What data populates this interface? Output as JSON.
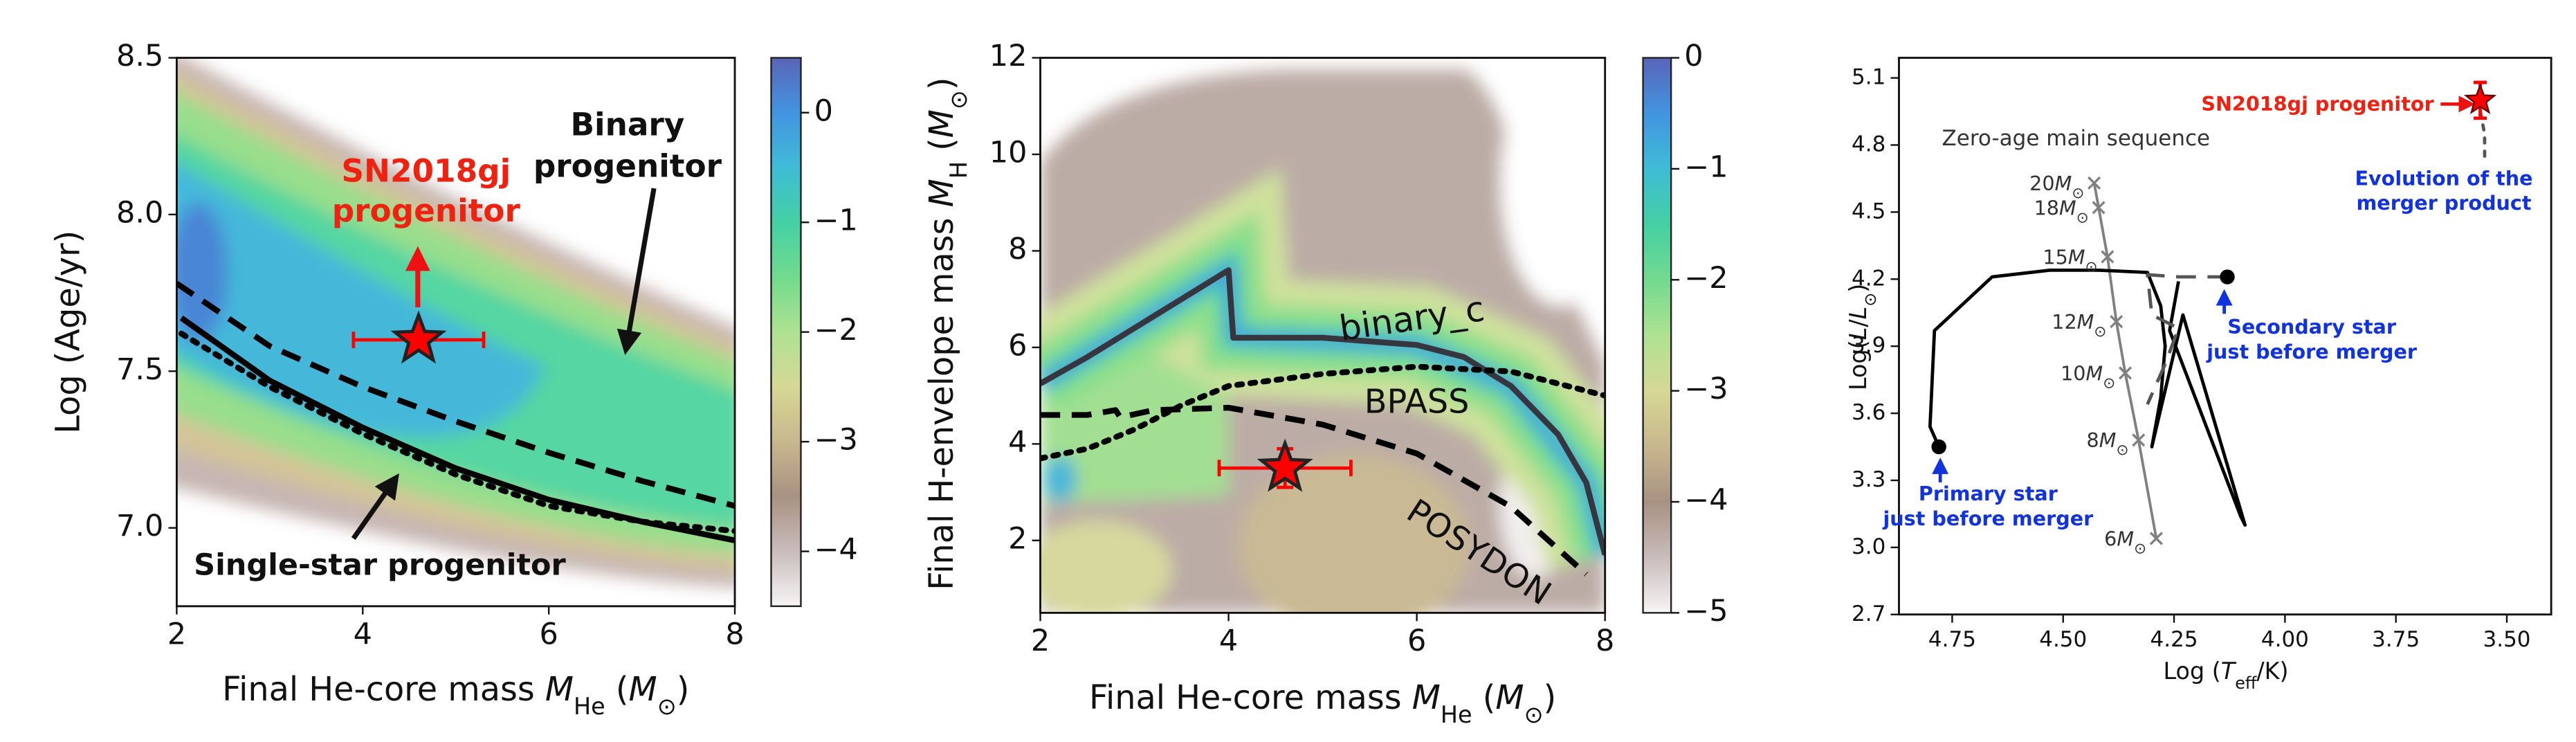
{
  "chart_data": [
    {
      "type": "heatmap",
      "x_label": [
        "Final He-core mass ",
        "M",
        "He",
        " (",
        "M",
        "⊙",
        ")"
      ],
      "y_label": "Log (Age/yr)",
      "xlim": [
        2,
        8
      ],
      "ylim": [
        6.75,
        8.5
      ],
      "xticks": [
        2,
        4,
        6,
        8
      ],
      "yticks": [
        {
          "value": 7,
          "label": "7.0"
        },
        7.5,
        {
          "value": 8,
          "label": "8.0"
        },
        8.5
      ],
      "colorbar": {
        "lim": [
          -4.5,
          0.5
        ],
        "ticks": [
          {
            "value": -4,
            "label": "−4"
          },
          {
            "value": -3,
            "label": "−3"
          },
          {
            "value": -2,
            "label": "−2"
          },
          {
            "value": -1,
            "label": "−1"
          },
          0
        ]
      },
      "series": [
        {
          "style": "solid",
          "color": "#000000",
          "x": [
            2.05,
            3,
            4,
            5,
            6,
            7,
            8
          ],
          "values": [
            7.67,
            7.47,
            7.32,
            7.19,
            7.09,
            7.02,
            6.96
          ]
        },
        {
          "style": "dashed",
          "color": "#000000",
          "x": [
            2,
            3,
            4,
            5,
            6,
            7,
            8
          ],
          "values": [
            7.78,
            7.58,
            7.45,
            7.34,
            7.24,
            7.15,
            7.07
          ]
        },
        {
          "style": "dotted",
          "color": "#000000",
          "x": [
            2.05,
            3,
            4,
            5,
            6,
            7,
            8
          ],
          "values": [
            7.62,
            7.45,
            7.3,
            7.17,
            7.07,
            7.02,
            6.99
          ]
        }
      ],
      "marker": {
        "x": 4.6,
        "y": 7.6,
        "x_error": 0.7,
        "color": "#ff0000"
      },
      "annotations": {
        "target": [
          "SN2018gj",
          "progenitor"
        ],
        "binary": [
          "Binary",
          "progenitor"
        ],
        "single": "Single-star progenitor"
      }
    },
    {
      "type": "heatmap",
      "x_label": [
        "Final He-core mass ",
        "M",
        "He",
        " (",
        "M",
        "⊙",
        ")"
      ],
      "y_label": [
        "Final H-envelope mass ",
        "M",
        "H",
        " (",
        "M",
        "⊙",
        ")"
      ],
      "xlim": [
        2,
        8
      ],
      "ylim": [
        0.5,
        12
      ],
      "xticks": [
        2,
        4,
        6,
        8
      ],
      "yticks": [
        2,
        4,
        6,
        8,
        10,
        12
      ],
      "colorbar": {
        "lim": [
          -5,
          0
        ],
        "ticks": [
          {
            "value": -5,
            "label": "−5"
          },
          {
            "value": -4,
            "label": "−4"
          },
          {
            "value": -3,
            "label": "−3"
          },
          {
            "value": -2,
            "label": "−2"
          },
          {
            "value": -1,
            "label": "−1"
          },
          0
        ]
      },
      "series": [
        {
          "name": "binary_c",
          "style": "solid",
          "color": "#363640",
          "x": [
            2,
            2.5,
            3,
            3.5,
            4,
            4.05,
            5,
            6,
            6.5,
            7,
            7.5,
            7.8,
            8
          ],
          "values": [
            5.25,
            5.8,
            6.4,
            7.0,
            7.6,
            6.2,
            6.2,
            6.05,
            5.8,
            5.2,
            4.2,
            3.2,
            1.7
          ]
        },
        {
          "name": "BPASS",
          "style": "dotted",
          "color": "#000000",
          "x": [
            2,
            2.5,
            3,
            3.5,
            4,
            5,
            6,
            7,
            8
          ],
          "values": [
            3.7,
            3.9,
            4.3,
            4.8,
            5.2,
            5.45,
            5.6,
            5.5,
            5.0
          ]
        },
        {
          "name": "POSYDON",
          "style": "dashed",
          "color": "#000000",
          "x": [
            2,
            2.5,
            2.8,
            2.85,
            3.2,
            4,
            5,
            6,
            7,
            7.8
          ],
          "values": [
            4.6,
            4.6,
            4.7,
            4.55,
            4.7,
            4.75,
            4.4,
            3.8,
            2.7,
            1.3
          ]
        }
      ],
      "marker": {
        "x": 4.6,
        "y": 3.5,
        "x_error": 0.7,
        "y_error": 0.4,
        "color": "#ff0000"
      }
    },
    {
      "type": "line",
      "x_label": [
        "Log (",
        "T",
        "eff",
        "/K)"
      ],
      "y_label": [
        "Log(",
        "L",
        "/",
        "L",
        "⊙",
        ")"
      ],
      "xlim": [
        4.87,
        3.4
      ],
      "ylim": [
        2.7,
        5.19
      ],
      "xticks": [
        4.75,
        {
          "value": 4.5,
          "label": "4.50"
        },
        4.25,
        {
          "value": 4,
          "label": "4.00"
        },
        3.75,
        {
          "value": 3.5,
          "label": "3.50"
        }
      ],
      "yticks": [
        2.7,
        {
          "value": 3,
          "label": "3.0"
        },
        3.3,
        3.6,
        3.9,
        4.2,
        4.5,
        4.8,
        5.1
      ],
      "series": [
        {
          "style": "solid",
          "color": "#000000",
          "x": [
            4.78,
            4.8,
            4.79,
            4.66,
            4.53,
            4.42,
            4.31,
            4.28,
            4.27,
            4.28,
            4.3,
            4.23,
            4.09,
            4.1,
            4.26,
            4.24
          ],
          "values": [
            3.45,
            3.54,
            3.97,
            4.21,
            4.24,
            4.24,
            4.23,
            4.08,
            3.9,
            3.67,
            3.45,
            4.04,
            3.1,
            3.14,
            3.97,
            4.19
          ]
        },
        {
          "style": "dashed",
          "color": "#555555",
          "x": [
            4.13,
            4.24,
            4.31,
            4.3,
            4.24,
            4.27,
            4.31
          ],
          "values": [
            4.21,
            4.21,
            4.22,
            4.04,
            3.98,
            3.82,
            3.64
          ]
        },
        {
          "style": "dotted",
          "color": "#555555",
          "x": [
            3.55,
            3.55,
            3.56,
            3.56
          ],
          "values": [
            4.75,
            4.85,
            4.95,
            5.02
          ]
        }
      ],
      "zams": {
        "label": "Zero-age main sequence",
        "color": "#808080",
        "x": [
          4.43,
          4.42,
          4.4,
          4.38,
          4.36,
          4.33,
          4.29
        ],
        "values": [
          4.63,
          4.52,
          4.3,
          4.01,
          3.78,
          3.48,
          3.04
        ],
        "masses": [
          20,
          18,
          15,
          12,
          10,
          8,
          6
        ],
        "mass_unit": [
          "M",
          "⊙"
        ]
      },
      "primary_star": {
        "x": 4.78,
        "y": 3.45,
        "label": [
          "Primary star",
          "just before merger"
        ]
      },
      "secondary_star": {
        "x": 4.13,
        "y": 4.21,
        "label": [
          "Secondary star",
          "just before merger"
        ]
      },
      "progenitor": {
        "x": 3.56,
        "y": 5.0,
        "y_error": 0.08,
        "color": "#ff0000",
        "label": "SN2018gj progenitor"
      },
      "merger_label": [
        "Evolution of the",
        "merger product"
      ]
    }
  ]
}
